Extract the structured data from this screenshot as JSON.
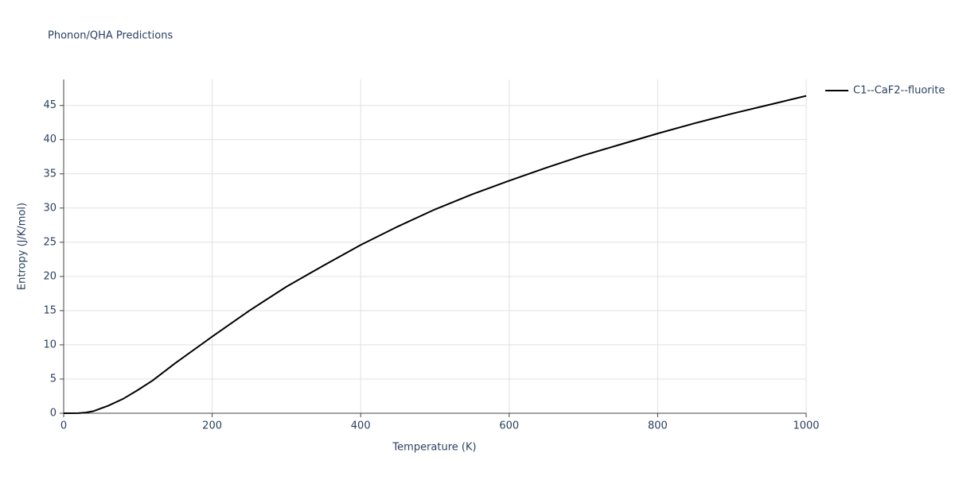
{
  "chart_data": {
    "type": "line",
    "title": "Phonon/QHA Predictions",
    "x_label": "Temperature (K)",
    "y_label": "Entropy (J/K/mol)",
    "x": [
      0,
      20,
      30,
      40,
      50,
      60,
      80,
      100,
      120,
      150,
      200,
      250,
      300,
      350,
      400,
      450,
      500,
      550,
      600,
      650,
      700,
      750,
      800,
      850,
      900,
      950,
      1000
    ],
    "series": [
      {
        "name": "C1--CaF2--fluorite",
        "color": "#000000",
        "values": [
          0,
          0.02,
          0.1,
          0.3,
          0.7,
          1.1,
          2.1,
          3.4,
          4.8,
          7.3,
          11.2,
          15.0,
          18.5,
          21.6,
          24.6,
          27.3,
          29.8,
          32.0,
          34.0,
          35.9,
          37.7,
          39.3,
          40.9,
          42.4,
          43.8,
          45.1,
          46.4
        ]
      }
    ],
    "xlim": [
      0,
      1000
    ],
    "xticks": [
      0,
      200,
      400,
      600,
      800,
      1000
    ],
    "ylim": [
      0,
      48.8
    ],
    "yticks": [
      0,
      5,
      10,
      15,
      20,
      25,
      30,
      35,
      40,
      45
    ],
    "grid": true,
    "legend": "right"
  }
}
